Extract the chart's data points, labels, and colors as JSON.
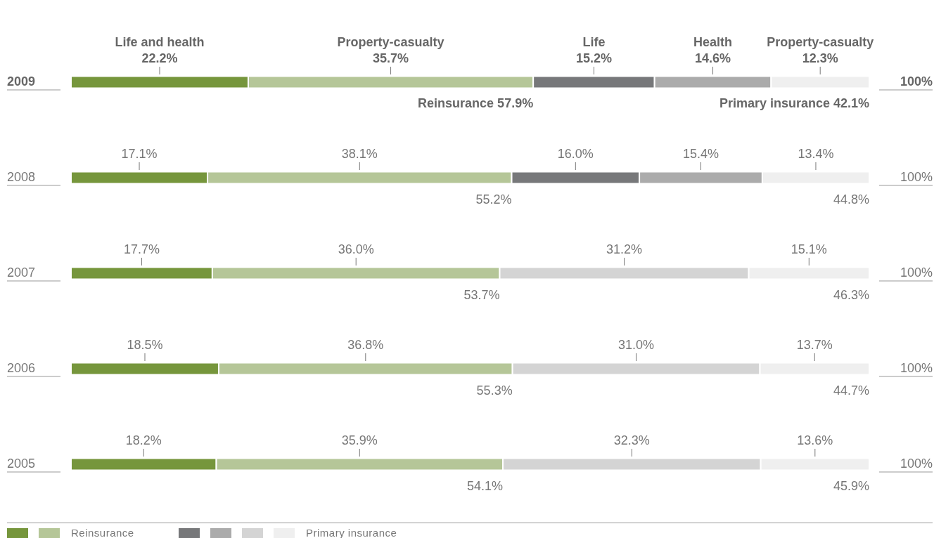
{
  "chart_data": {
    "type": "bar",
    "orientation": "horizontal",
    "stacked": true,
    "categories": [
      "2009",
      "2008",
      "2007",
      "2006",
      "2005"
    ],
    "series": [
      {
        "name": "Life and health",
        "color": "#76963c",
        "values": [
          22.2,
          17.1,
          17.7,
          18.5,
          18.2
        ],
        "value_labels": [
          "22.2%",
          "17.1%",
          "17.7%",
          "18.5%",
          "18.2%"
        ]
      },
      {
        "name": "Property-casualty",
        "color": "#b5c698",
        "values": [
          35.7,
          38.1,
          36.0,
          36.8,
          35.9
        ],
        "value_labels": [
          "35.7%",
          "38.1%",
          "36.0%",
          "36.8%",
          "35.9%"
        ]
      },
      {
        "name": "Life",
        "color": "#77787a",
        "values": [
          15.2,
          16.0,
          null,
          null,
          null
        ],
        "value_labels": [
          "15.2%",
          "16.0%",
          null,
          null,
          null
        ]
      },
      {
        "name": "Health",
        "color": "#ababab",
        "values": [
          14.6,
          15.4,
          null,
          null,
          null
        ],
        "value_labels": [
          "14.6%",
          "15.4%",
          null,
          null,
          null
        ]
      },
      {
        "color": "#d4d4d4",
        "values": [
          null,
          null,
          31.2,
          31.0,
          32.3
        ],
        "value_labels": [
          null,
          null,
          "31.2%",
          "31.0%",
          "32.3%"
        ]
      },
      {
        "name": "Property-casualty",
        "color": "#efefef",
        "values": [
          12.3,
          13.4,
          15.1,
          13.7,
          13.6
        ],
        "value_labels": [
          "12.3%",
          "13.4%",
          "15.1%",
          "13.7%",
          "13.6%"
        ]
      }
    ],
    "totals": [
      "100%",
      "100%",
      "100%",
      "100%",
      "100%"
    ],
    "annotations": [
      {
        "text": "Reinsurance 57.9%",
        "x": 57.9,
        "y": "2009"
      },
      {
        "text": "Primary insurance 42.1%",
        "x": 100,
        "y": "2009"
      },
      {
        "text": "55.2%",
        "x": 55.2,
        "y": "2008"
      },
      {
        "text": "44.8%",
        "x": 100,
        "y": "2008"
      },
      {
        "text": "53.7%",
        "x": 53.7,
        "y": "2007"
      },
      {
        "text": "46.3%",
        "x": 100,
        "y": "2007"
      },
      {
        "text": "55.3%",
        "x": 55.3,
        "y": "2006"
      },
      {
        "text": "44.7%",
        "x": 100,
        "y": "2006"
      },
      {
        "text": "54.1%",
        "x": 54.1,
        "y": "2005"
      },
      {
        "text": "45.9%",
        "x": 100,
        "y": "2005"
      },
      "Reinsurance",
      "Primary insurance"
    ]
  }
}
